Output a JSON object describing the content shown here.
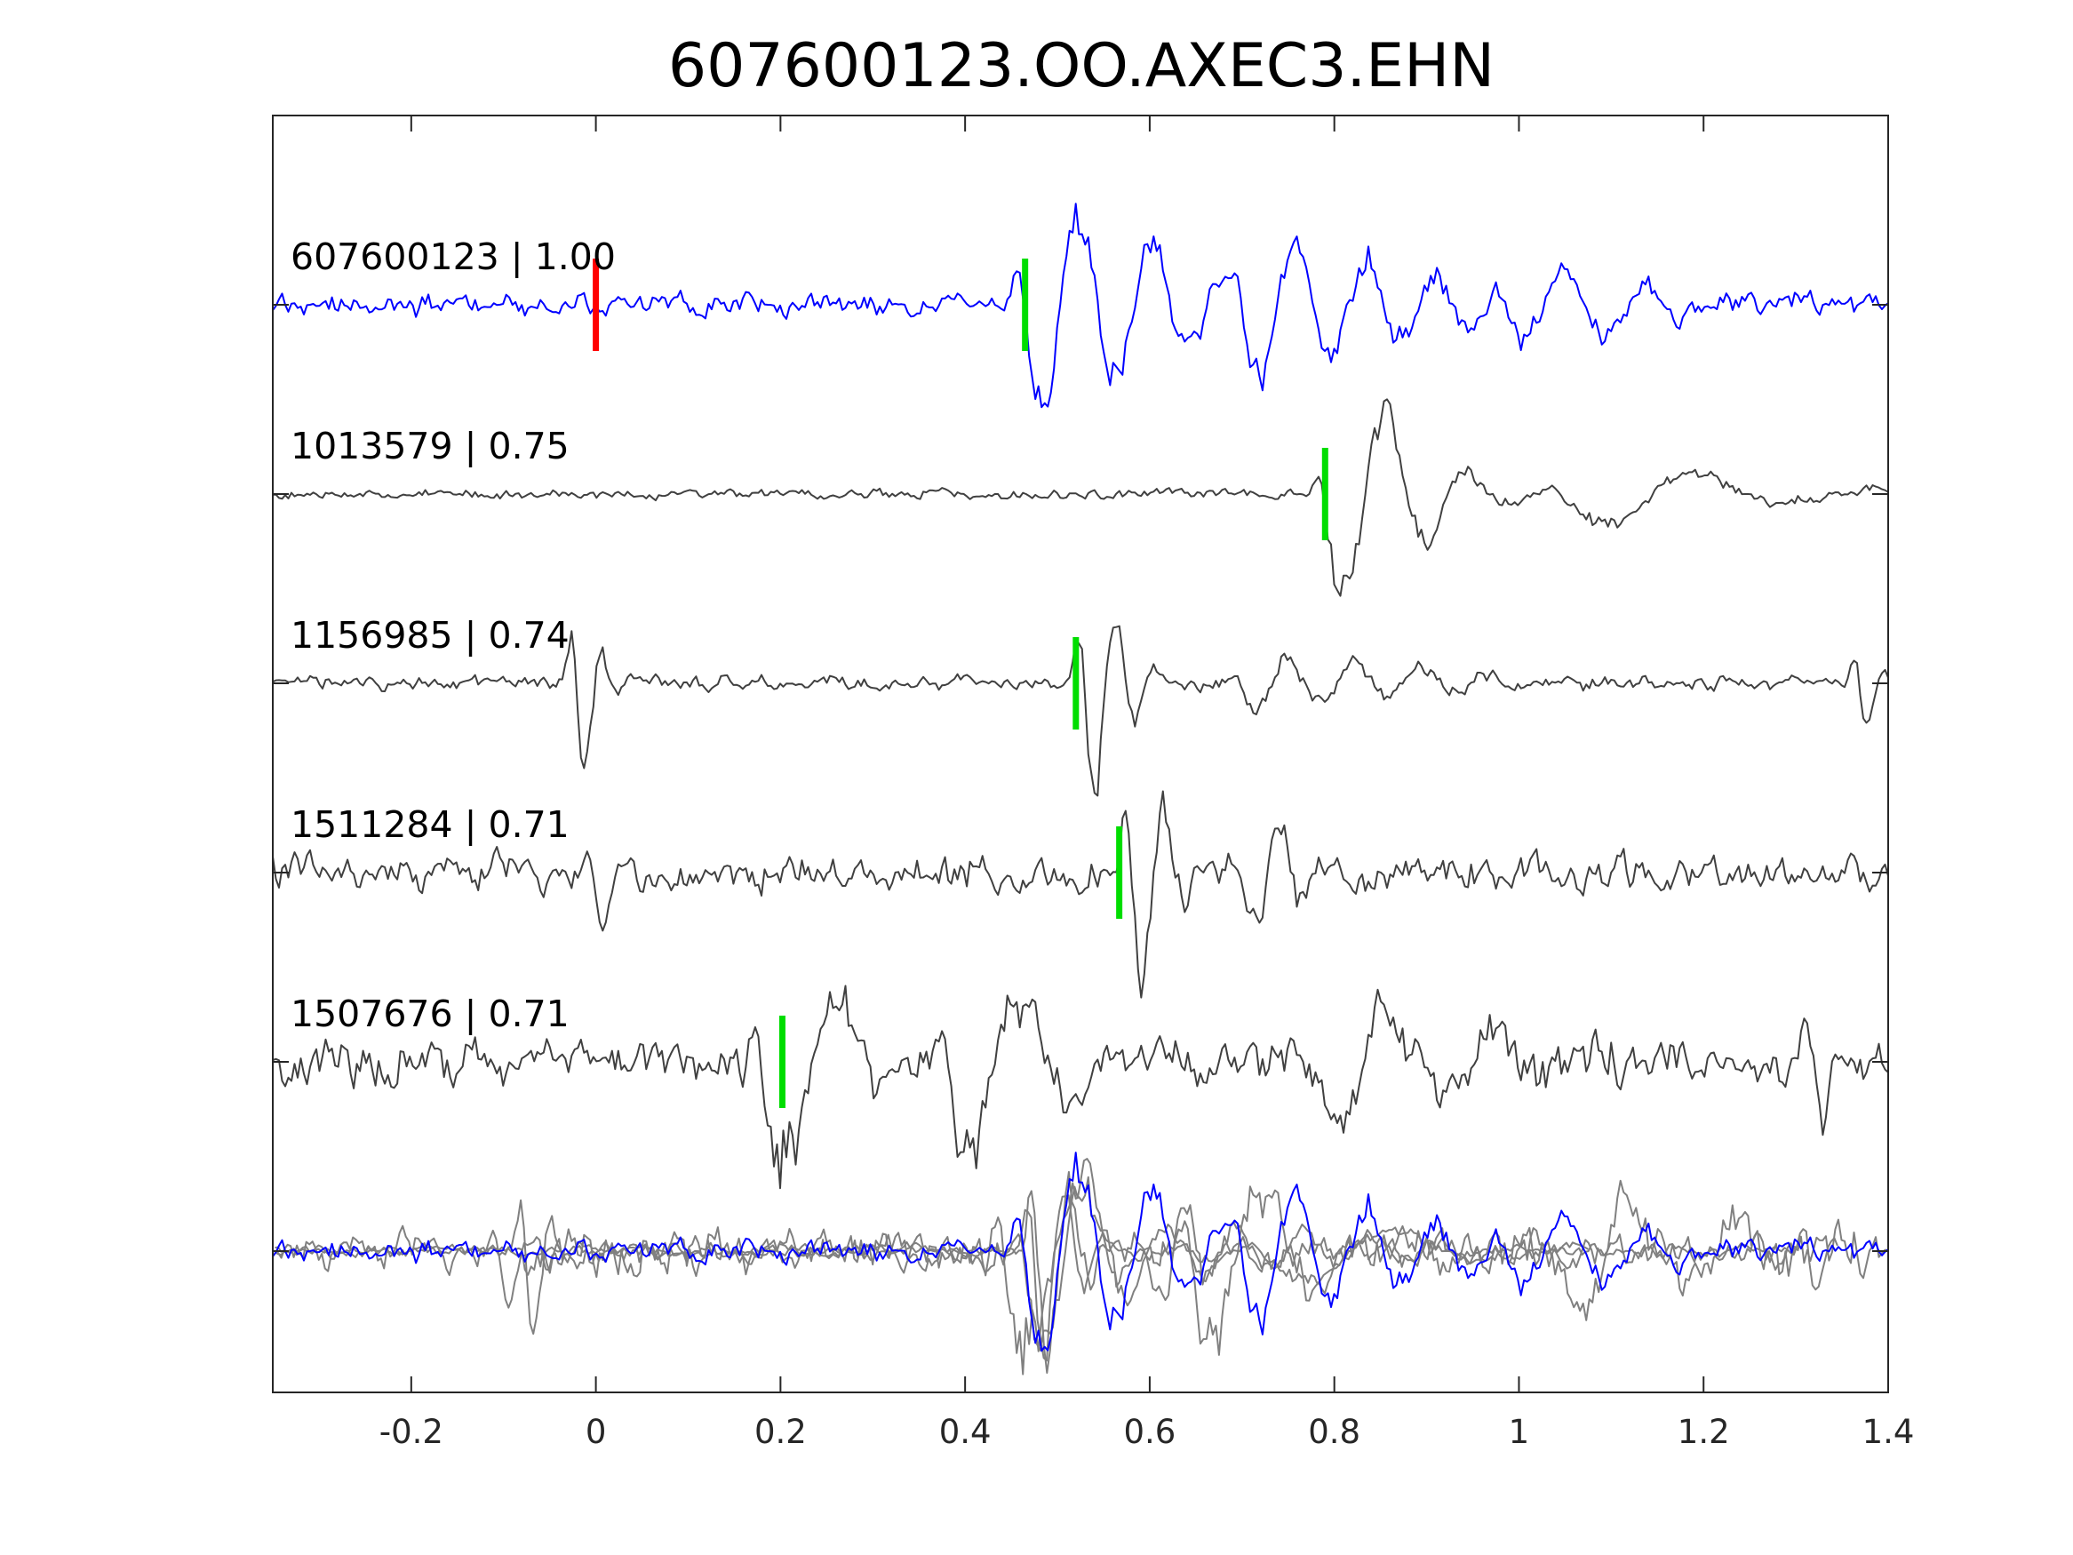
{
  "chart_data": {
    "type": "line",
    "title": "607600123.OO.AXEC3.EHN",
    "xlabel": "",
    "ylabel": "",
    "xlim": [
      -0.35,
      1.4
    ],
    "xticks": [
      -0.2,
      0,
      0.2,
      0.4,
      0.6,
      0.8,
      1,
      1.2,
      1.4
    ],
    "xtick_labels": [
      "-0.2",
      "0",
      "0.2",
      "0.4",
      "0.6",
      "0.8",
      "1",
      "1.2",
      "1.4"
    ],
    "grid": false,
    "colors": {
      "primary_trace": "#0000ff",
      "other_trace": "#404040",
      "stack_trace": "#808080",
      "reference_pick": "#ff0000",
      "matched_pick": "#00dd00",
      "axes": "#262626"
    },
    "traces": [
      {
        "name": "607600123",
        "score": "1.00",
        "label": "607600123 | 1.00",
        "color": "#0000ff",
        "reference_pick": 0.0,
        "pick": 0.465,
        "events": [
          {
            "t": 0.465,
            "amp": 1.0,
            "freq": 12.5,
            "dur": 0.42
          },
          {
            "t": 0.7,
            "amp": 0.55,
            "freq": 13,
            "dur": 0.55
          },
          {
            "t": 0.98,
            "amp": 0.35,
            "freq": 11,
            "dur": 0.4
          }
        ],
        "noise": 0.14,
        "seed": 3
      },
      {
        "name": "1013579",
        "score": "0.75",
        "label": "1013579 | 0.75",
        "color": "#404040",
        "pick": 0.79,
        "events": [
          {
            "t": 0.79,
            "amp": 1.0,
            "freq": 11,
            "dur": 0.28
          },
          {
            "t": 1.05,
            "amp": 0.3,
            "freq": 5,
            "dur": 0.5
          }
        ],
        "noise": 0.06,
        "seed": 7
      },
      {
        "name": "1156985",
        "score": "0.74",
        "label": "1156985 | 0.74",
        "color": "#404040",
        "pick": 0.52,
        "events": [
          {
            "t": -0.02,
            "amp": 0.9,
            "freq": 25,
            "dur": 0.06
          },
          {
            "t": 0.53,
            "amp": 1.0,
            "freq": 22,
            "dur": 0.12
          },
          {
            "t": 0.7,
            "amp": 0.25,
            "freq": 14,
            "dur": 0.5
          },
          {
            "t": 1.37,
            "amp": 0.5,
            "freq": 25,
            "dur": 0.05
          }
        ],
        "noise": 0.09,
        "seed": 11
      },
      {
        "name": "1511284",
        "score": "0.71",
        "label": "1511284 | 0.71",
        "color": "#404040",
        "pick": 0.567,
        "events": [
          {
            "t": 0.0,
            "amp": 0.5,
            "freq": 24,
            "dur": 0.07
          },
          {
            "t": 0.58,
            "amp": 1.0,
            "freq": 20,
            "dur": 0.12
          },
          {
            "t": 0.7,
            "amp": 0.45,
            "freq": 18,
            "dur": 0.18
          }
        ],
        "noise": 0.22,
        "seed": 19
      },
      {
        "name": "1507676",
        "score": "0.71",
        "label": "1507676 | 0.71",
        "color": "#404040",
        "pick": 0.202,
        "events": [
          {
            "t": 0.18,
            "amp": 0.9,
            "freq": 9,
            "dur": 0.25
          },
          {
            "t": 0.38,
            "amp": 0.85,
            "freq": 9,
            "dur": 0.3
          },
          {
            "t": 0.78,
            "amp": 0.5,
            "freq": 9,
            "dur": 0.5
          },
          {
            "t": 1.32,
            "amp": 0.7,
            "freq": 20,
            "dur": 0.05
          }
        ],
        "noise": 0.3,
        "seed": 29
      }
    ],
    "stack": {
      "description_visible": false,
      "primary_color": "#0000ff",
      "other_color": "#808080"
    }
  }
}
